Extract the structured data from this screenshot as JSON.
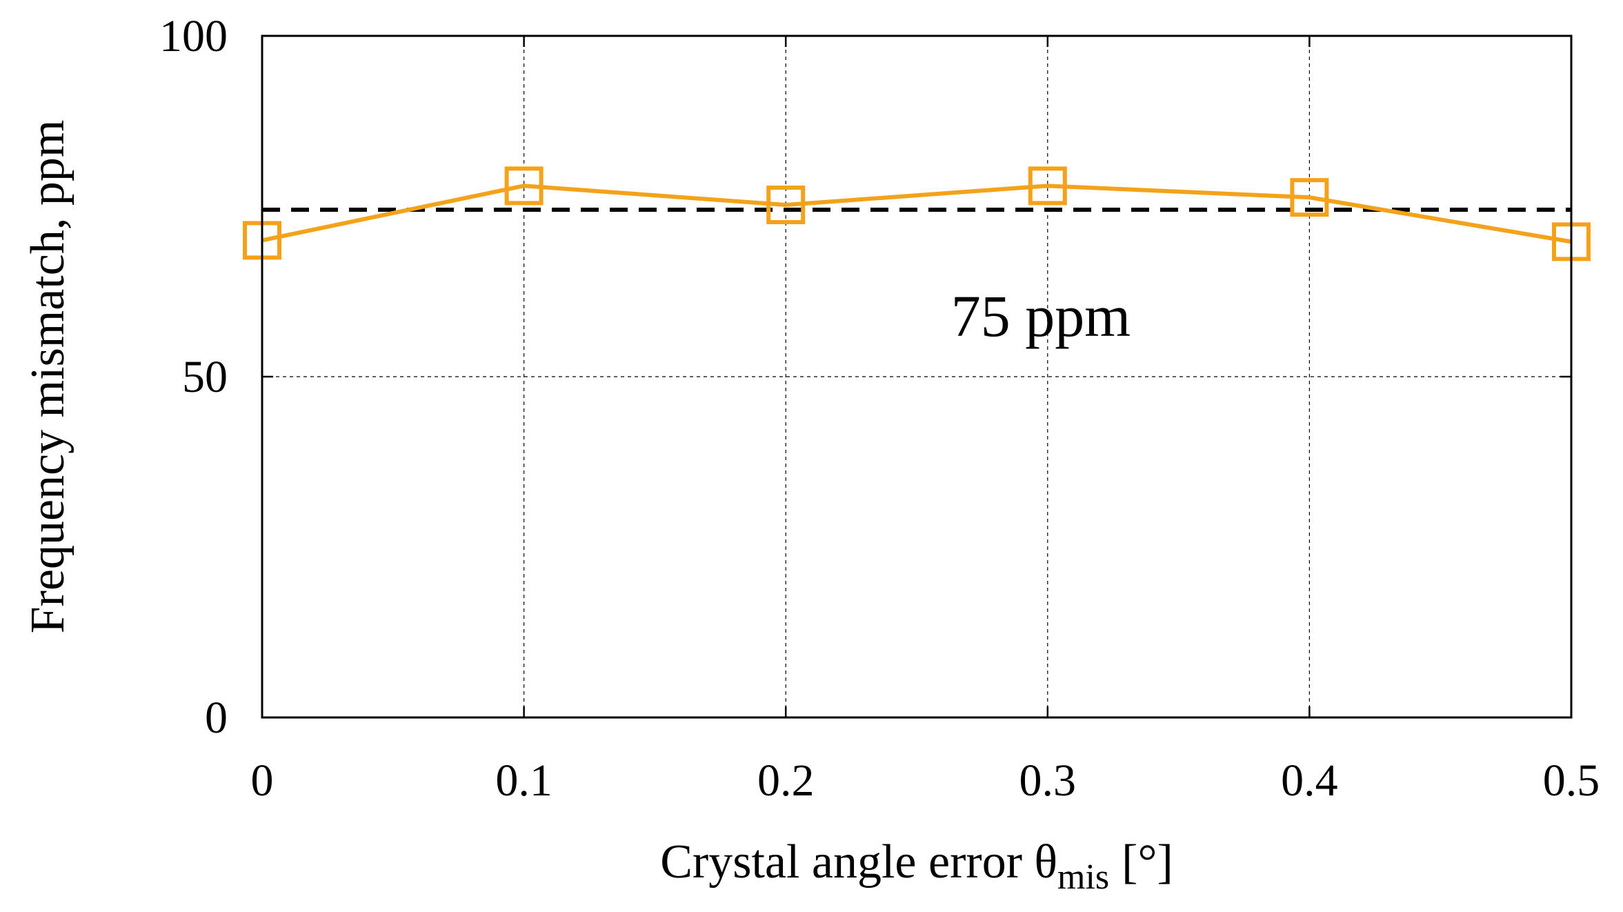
{
  "chart_data": {
    "type": "line",
    "title": "",
    "xlabel": {
      "main": "Crystal angle error θ",
      "subscript": "mis",
      "unit": "[°]"
    },
    "ylabel": "Frequency mismatch, ppm",
    "xlim": [
      0,
      0.5
    ],
    "ylim": [
      0,
      100
    ],
    "xticks": [
      0,
      0.1,
      0.2,
      0.3,
      0.4,
      0.5
    ],
    "xtick_labels": [
      "0",
      "0.1",
      "0.2",
      "0.3",
      "0.4",
      "0.5"
    ],
    "yticks": [
      0,
      50,
      100
    ],
    "ytick_labels": [
      "0",
      "50",
      "100"
    ],
    "grid": true,
    "series": [
      {
        "name": "Frequency mismatch",
        "marker": "open-square",
        "color": "#F5A21B",
        "x": [
          0,
          0.1,
          0.2,
          0.3,
          0.4,
          0.5
        ],
        "values": [
          70,
          78,
          75.2,
          78,
          76.3,
          69.8
        ]
      }
    ],
    "reference_line": {
      "value": 74.5,
      "style": "dashed",
      "color": "#000000"
    },
    "annotations": [
      {
        "text": "75 ppm",
        "x": 0.25,
        "y": 59
      }
    ]
  }
}
